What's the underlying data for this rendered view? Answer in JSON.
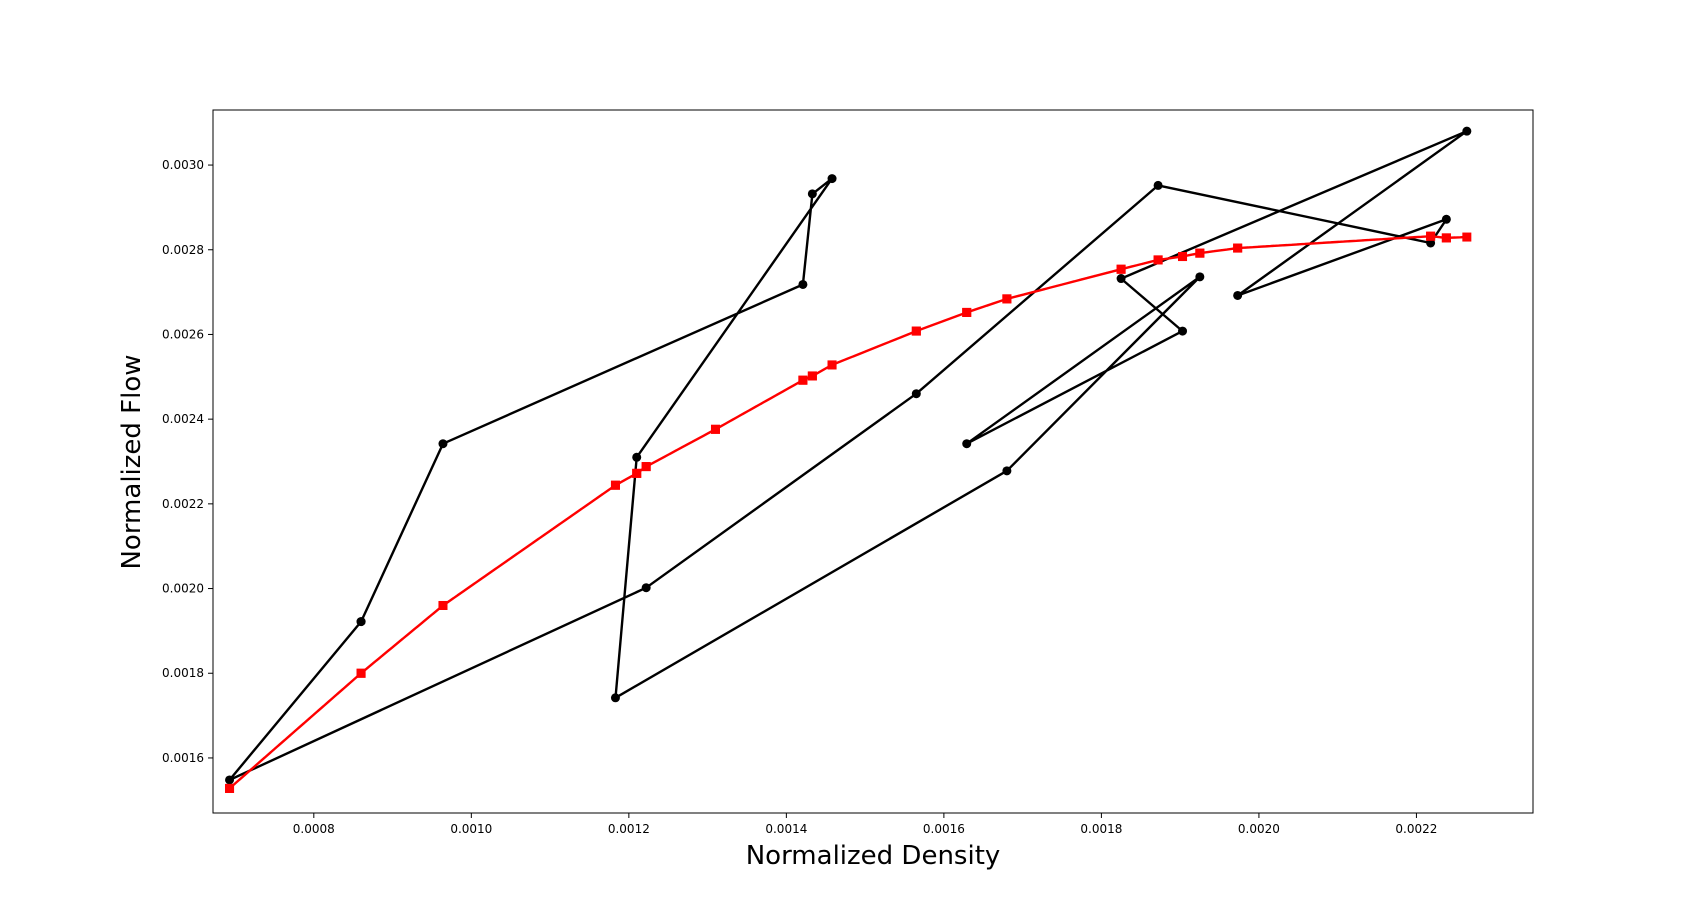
{
  "chart_data": {
    "type": "line",
    "title": "",
    "xlabel": "Normalized Density",
    "ylabel": "Normalized Flow",
    "xlim": [
      0.000672,
      0.002348
    ],
    "ylim": [
      0.00147,
      0.00313
    ],
    "xticks": [
      0.0008,
      0.001,
      0.0012,
      0.0014,
      0.0016,
      0.0018,
      0.002,
      0.0022
    ],
    "xtick_labels": [
      "0.0008",
      "0.0010",
      "0.0012",
      "0.0014",
      "0.0016",
      "0.0018",
      "0.0020",
      "0.0022"
    ],
    "yticks": [
      0.0016,
      0.0018,
      0.002,
      0.0022,
      0.0024,
      0.0026,
      0.0028,
      0.003
    ],
    "ytick_labels": [
      "0.0016",
      "0.0018",
      "0.0020",
      "0.0022",
      "0.0024",
      "0.0026",
      "0.0028",
      "0.0030"
    ],
    "grid": false,
    "legend": "none",
    "series": [
      {
        "style": "solid",
        "marker": "circle",
        "color": "#000000",
        "x": [
          0.00086,
          0.000964,
          0.001421,
          0.001433,
          0.001458,
          0.00121,
          0.001183,
          0.00168,
          0.001925,
          0.001629,
          0.001903,
          0.001825,
          0.002264,
          0.001973,
          0.002238,
          0.002218,
          0.001872,
          0.001565,
          0.001222,
          0.000693,
          0.00086
        ],
        "y": [
          0.001922,
          0.002342,
          0.002718,
          0.002932,
          0.002968,
          0.00231,
          0.001742,
          0.002278,
          0.002736,
          0.002342,
          0.002608,
          0.002732,
          0.00308,
          0.002692,
          0.002872,
          0.002816,
          0.002952,
          0.00246,
          0.002002,
          0.001548,
          0.001922
        ]
      },
      {
        "style": "dashed",
        "marker": "square",
        "color": "#ff0000",
        "x": [
          0.000693,
          0.00086,
          0.000964,
          0.001183,
          0.00121,
          0.001222,
          0.00131,
          0.001421,
          0.001433,
          0.001458,
          0.001565,
          0.001629,
          0.00168,
          0.001825,
          0.001872,
          0.001903,
          0.001925,
          0.001973,
          0.002218,
          0.002238,
          0.002264,
          0.002238,
          0.002218,
          0.001973,
          0.001925,
          0.001903,
          0.001872,
          0.001825,
          0.00168,
          0.001629,
          0.001565,
          0.001458,
          0.001433,
          0.001421,
          0.00131,
          0.001222,
          0.00121,
          0.001183,
          0.000964,
          0.00086,
          0.000693
        ],
        "y": [
          0.001528,
          0.0018,
          0.00196,
          0.002244,
          0.002272,
          0.002288,
          0.002376,
          0.002492,
          0.002502,
          0.002528,
          0.002608,
          0.002652,
          0.002684,
          0.002754,
          0.002776,
          0.002784,
          0.002792,
          0.002804,
          0.002832,
          0.002828,
          0.00283,
          0.002828,
          0.002832,
          0.002804,
          0.002792,
          0.002784,
          0.002776,
          0.002754,
          0.002684,
          0.002652,
          0.002608,
          0.002528,
          0.002502,
          0.002492,
          0.002376,
          0.002288,
          0.002272,
          0.002244,
          0.00196,
          0.0018,
          0.001528
        ]
      }
    ]
  }
}
